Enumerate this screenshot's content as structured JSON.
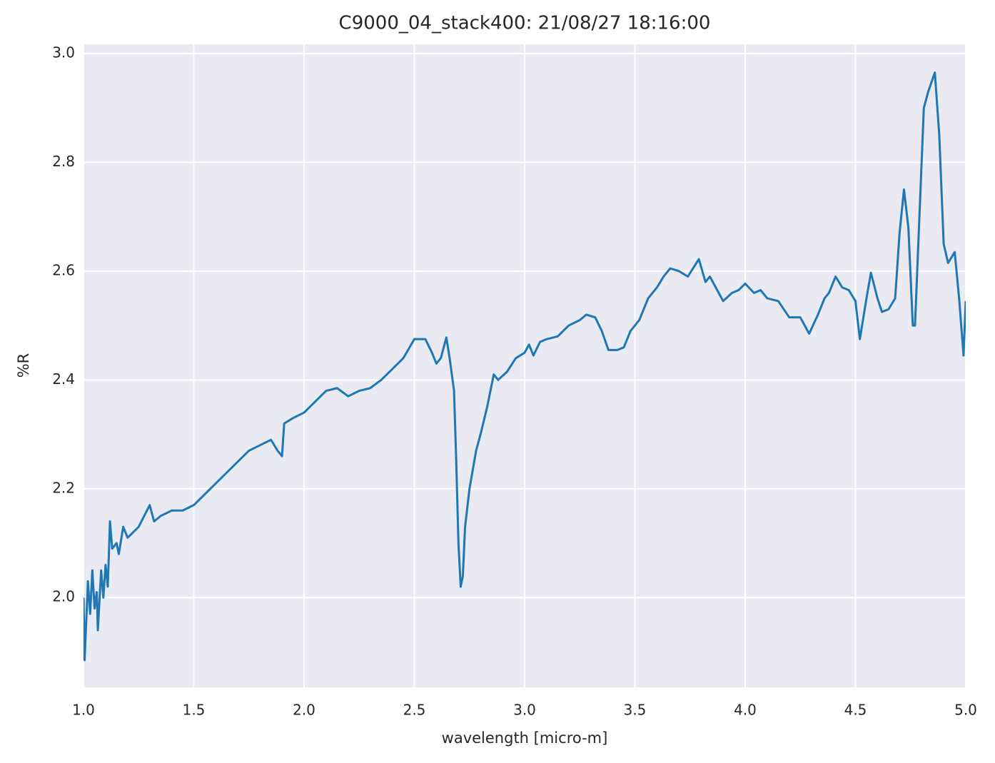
{
  "chart_data": {
    "type": "line",
    "title": "C9000_04_stack400:  21/08/27 18:16:00",
    "xlabel": "wavelength [micro-m]",
    "ylabel": "%R",
    "xlim": [
      1.0,
      5.0
    ],
    "ylim": [
      1.835,
      3.017
    ],
    "xticks": [
      {
        "value": 1,
        "label": "1.0"
      },
      1.5,
      {
        "value": 2,
        "label": "2.0"
      },
      2.5,
      {
        "value": 3,
        "label": "3.0"
      },
      3.5,
      {
        "value": 4,
        "label": "4.0"
      },
      4.5,
      {
        "value": 5,
        "label": "5.0"
      }
    ],
    "yticks": [
      {
        "value": 2,
        "label": "2.0"
      },
      2.2,
      2.4,
      2.6,
      2.8,
      {
        "value": 3,
        "label": "3.0"
      }
    ],
    "grid": true,
    "background": "#eaeaf2",
    "series": [
      {
        "name": "%R",
        "color": "#1f77b4",
        "x": [
          1.0,
          1.005,
          1.02,
          1.03,
          1.04,
          1.05,
          1.06,
          1.065,
          1.08,
          1.09,
          1.1,
          1.11,
          1.12,
          1.13,
          1.15,
          1.16,
          1.18,
          1.2,
          1.25,
          1.3,
          1.32,
          1.35,
          1.4,
          1.45,
          1.5,
          1.55,
          1.6,
          1.65,
          1.7,
          1.75,
          1.8,
          1.85,
          1.88,
          1.9,
          1.91,
          1.95,
          2.0,
          2.05,
          2.1,
          2.15,
          2.2,
          2.25,
          2.3,
          2.35,
          2.4,
          2.45,
          2.5,
          2.55,
          2.58,
          2.6,
          2.62,
          2.645,
          2.66,
          2.68,
          2.69,
          2.7,
          2.71,
          2.72,
          2.73,
          2.75,
          2.78,
          2.8,
          2.83,
          2.86,
          2.88,
          2.92,
          2.96,
          3.0,
          3.02,
          3.04,
          3.07,
          3.1,
          3.15,
          3.2,
          3.25,
          3.28,
          3.32,
          3.35,
          3.38,
          3.42,
          3.45,
          3.48,
          3.52,
          3.56,
          3.6,
          3.63,
          3.66,
          3.7,
          3.74,
          3.79,
          3.82,
          3.84,
          3.88,
          3.9,
          3.94,
          3.97,
          4.0,
          4.04,
          4.07,
          4.1,
          4.15,
          4.2,
          4.25,
          4.29,
          4.33,
          4.36,
          4.38,
          4.41,
          4.44,
          4.47,
          4.5,
          4.52,
          4.55,
          4.57,
          4.6,
          4.62,
          4.65,
          4.68,
          4.7,
          4.72,
          4.74,
          4.76,
          4.77,
          4.79,
          4.81,
          4.83,
          4.86,
          4.88,
          4.9,
          4.92,
          4.95,
          4.97,
          4.99,
          5.0
        ],
        "values": [
          2.0,
          1.885,
          2.03,
          1.97,
          2.05,
          1.98,
          2.01,
          1.94,
          2.05,
          2.0,
          2.06,
          2.02,
          2.14,
          2.09,
          2.1,
          2.08,
          2.13,
          2.11,
          2.13,
          2.17,
          2.14,
          2.15,
          2.16,
          2.16,
          2.17,
          2.19,
          2.21,
          2.23,
          2.25,
          2.27,
          2.28,
          2.29,
          2.27,
          2.26,
          2.32,
          2.33,
          2.34,
          2.36,
          2.38,
          2.385,
          2.37,
          2.38,
          2.385,
          2.4,
          2.42,
          2.44,
          2.475,
          2.475,
          2.45,
          2.43,
          2.44,
          2.478,
          2.44,
          2.38,
          2.25,
          2.1,
          2.02,
          2.04,
          2.13,
          2.2,
          2.27,
          2.3,
          2.35,
          2.41,
          2.4,
          2.415,
          2.44,
          2.45,
          2.465,
          2.445,
          2.47,
          2.475,
          2.48,
          2.5,
          2.51,
          2.52,
          2.515,
          2.49,
          2.455,
          2.455,
          2.46,
          2.49,
          2.51,
          2.55,
          2.57,
          2.59,
          2.605,
          2.6,
          2.59,
          2.622,
          2.58,
          2.59,
          2.56,
          2.545,
          2.56,
          2.565,
          2.577,
          2.56,
          2.565,
          2.55,
          2.545,
          2.515,
          2.515,
          2.485,
          2.52,
          2.55,
          2.56,
          2.59,
          2.57,
          2.565,
          2.545,
          2.475,
          2.55,
          2.597,
          2.55,
          2.525,
          2.53,
          2.55,
          2.67,
          2.75,
          2.68,
          2.5,
          2.5,
          2.7,
          2.9,
          2.93,
          2.965,
          2.85,
          2.65,
          2.615,
          2.635,
          2.55,
          2.445,
          2.545
        ]
      }
    ]
  }
}
